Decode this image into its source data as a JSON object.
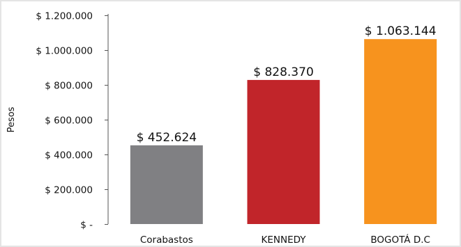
{
  "chart_data": {
    "type": "bar",
    "title": "",
    "xlabel": "",
    "ylabel": "Pesos",
    "categories": [
      "Corabastos",
      "KENNEDY",
      "BOGOTÁ D.C"
    ],
    "values": [
      452624,
      828370,
      1063144
    ],
    "value_labels": [
      "$ 452.624",
      "$ 828.370",
      "$ 1.063.144"
    ],
    "bar_colors": [
      "#808083",
      "#c1252a",
      "#f7931e"
    ],
    "ylim": [
      0,
      1200000
    ],
    "yticks": [
      0,
      200000,
      400000,
      600000,
      800000,
      1000000,
      1200000
    ],
    "ytick_labels": [
      "$ -",
      "$ 200.000",
      "$ 400.000",
      "$ 600.000",
      "$ 800.000",
      "$ 1.000.000",
      "$ 1.200.000"
    ],
    "grid": false,
    "legend": "none"
  }
}
